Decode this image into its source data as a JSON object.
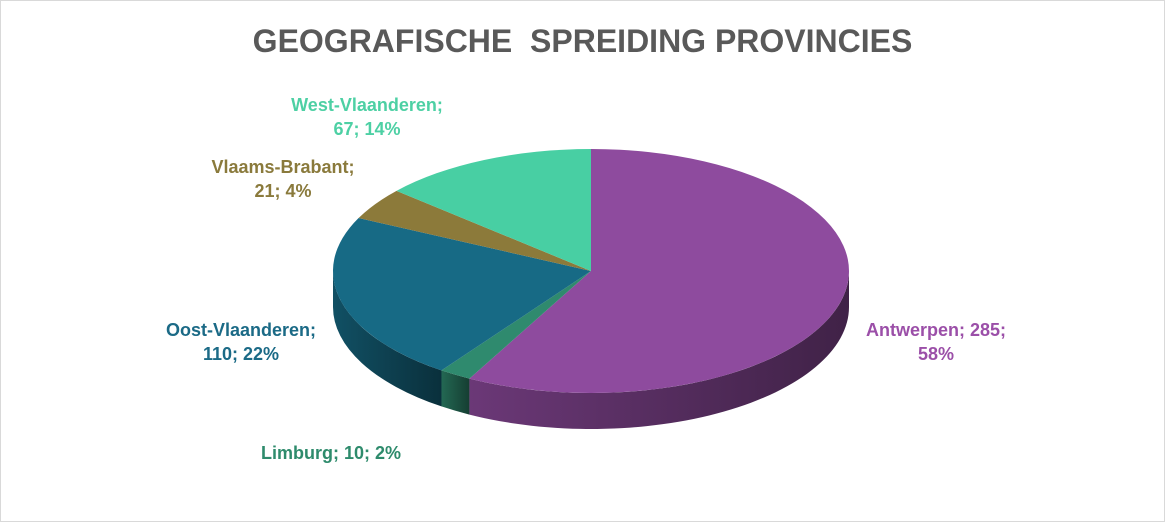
{
  "chart_data": {
    "type": "pie3d",
    "title": "GEOGRAFISCHE  SPREIDING PROVINCIES",
    "categories": [
      "Antwerpen",
      "Limburg",
      "Oost-Vlaanderen",
      "Vlaams-Brabant",
      "West-Vlaanderen"
    ],
    "values": [
      285,
      10,
      110,
      21,
      67
    ],
    "value_labels": [
      "Antwerpen; 285; 58%",
      "Limburg; 10; 2%",
      "Oost-Vlaanderen; 110; 22%",
      "Vlaams-Brabant; 21; 4%",
      "West-Vlaanderen; 67; 14%"
    ],
    "colors": [
      "#8e4b9e",
      "#2f8a6e",
      "#176a85",
      "#8c7a3a",
      "#48cfa3"
    ]
  }
}
